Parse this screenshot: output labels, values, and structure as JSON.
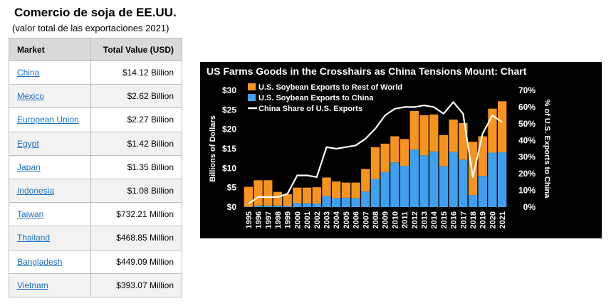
{
  "heading": {
    "title": "Comercio de soja de EE.UU.",
    "subtitle": "(valor total de las exportaciones 2021)"
  },
  "table": {
    "headers": {
      "market": "Market",
      "value": "Total Value (USD)"
    },
    "rows": [
      {
        "market": "China",
        "value": "$14.12 Billion"
      },
      {
        "market": "Mexico",
        "value": "$2.62 Billion"
      },
      {
        "market": "European Union",
        "value": "$2.27 Billion"
      },
      {
        "market": "Egypt",
        "value": "$1.42 Billion"
      },
      {
        "market": "Japan",
        "value": "$1.35 Billion"
      },
      {
        "market": "Indonesia",
        "value": "$1.08 Billion"
      },
      {
        "market": "Taiwan",
        "value": "$732.21 Million"
      },
      {
        "market": "Thailand",
        "value": "$468.85 Million"
      },
      {
        "market": "Bangladesh",
        "value": "$449.09 Million"
      },
      {
        "market": "Vietnam",
        "value": "$393.07 Million"
      }
    ]
  },
  "colors": {
    "rest_of_world": "#f7941d",
    "china": "#3ea0ee",
    "share_line": "#ffffff",
    "background": "#000000",
    "link": "#1a6fc2"
  },
  "chart_data": {
    "type": "bar",
    "title": "US Farms Goods in the Crosshairs as China Tensions Mount: Chart",
    "ylabel": "Billions of Dollars",
    "y2label": "% of U.S. Exports to China",
    "ylim": [
      0,
      30
    ],
    "y2lim": [
      0,
      70
    ],
    "yticks": [
      "$0",
      "$5",
      "$10",
      "$15",
      "$20",
      "$25",
      "$30"
    ],
    "y2ticks": [
      "0%",
      "10%",
      "20%",
      "30%",
      "40%",
      "50%",
      "60%",
      "70%"
    ],
    "categories": [
      "1995",
      "1996",
      "1997",
      "1998",
      "1999",
      "2000",
      "2001",
      "2002",
      "2003",
      "2004",
      "2005",
      "2006",
      "2007",
      "2008",
      "2009",
      "2010",
      "2011",
      "2012",
      "2013",
      "2014",
      "2015",
      "2016",
      "2017",
      "2018",
      "2019",
      "2020",
      "2021"
    ],
    "series": [
      {
        "name": "U.S. Soybean Exports to Rest of World",
        "kind": "stacked-bar",
        "values": [
          5.1,
          6.5,
          6.5,
          3.5,
          3.0,
          4.0,
          4.0,
          4.2,
          4.8,
          4.3,
          3.9,
          4.0,
          5.8,
          8.2,
          7.3,
          6.7,
          6.9,
          9.9,
          10.3,
          9.5,
          8.0,
          8.3,
          9.4,
          13.7,
          10.2,
          11.3,
          13.1
        ]
      },
      {
        "name": "U.S. Soybean Exports to China",
        "kind": "stacked-bar",
        "values": [
          0.1,
          0.4,
          0.4,
          0.4,
          0.3,
          1.0,
          1.0,
          0.9,
          2.8,
          2.3,
          2.4,
          2.3,
          4.0,
          7.2,
          9.0,
          11.5,
          10.6,
          14.8,
          13.3,
          14.3,
          10.5,
          14.2,
          12.2,
          3.1,
          8.0,
          14.0,
          14.1
        ]
      },
      {
        "name": "China Share of U.S. Exports",
        "kind": "line",
        "axis": "right",
        "values": [
          2,
          6,
          6,
          6,
          8,
          19,
          19,
          18,
          36,
          35,
          36,
          37,
          41,
          47,
          55,
          59,
          60,
          60,
          61,
          60,
          56,
          63,
          56,
          18,
          44,
          55,
          51
        ]
      }
    ]
  }
}
